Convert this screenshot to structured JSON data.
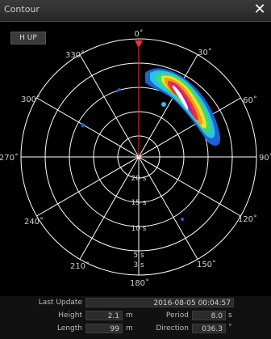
{
  "window": {
    "title": "Contour",
    "close_symbol": "✕"
  },
  "controls": {
    "orientation_label": "H UP"
  },
  "polar": {
    "bearing_labels": [
      "0˚",
      "30˚",
      "60˚",
      "90˚",
      "120˚",
      "150˚",
      "180˚",
      "210˚",
      "240˚",
      "270˚",
      "300˚",
      "330˚"
    ],
    "period_labels": [
      "20 s",
      "15 s",
      "10 s",
      "5 s",
      "3 s"
    ],
    "heading_marker_color": "#ff3030",
    "grid_color": "#ffffff"
  },
  "info": {
    "last_update_label": "Last Update",
    "last_update_value": "2016-08-05 00:04:57",
    "height_label": "Height",
    "height_value": "2.1",
    "height_unit": "m",
    "period_label": "Period",
    "period_value": "8.0",
    "period_unit": "s",
    "length_label": "Length",
    "length_value": "99",
    "length_unit": "m",
    "direction_label": "Direction",
    "direction_value": "036.3",
    "direction_unit": "˚"
  }
}
